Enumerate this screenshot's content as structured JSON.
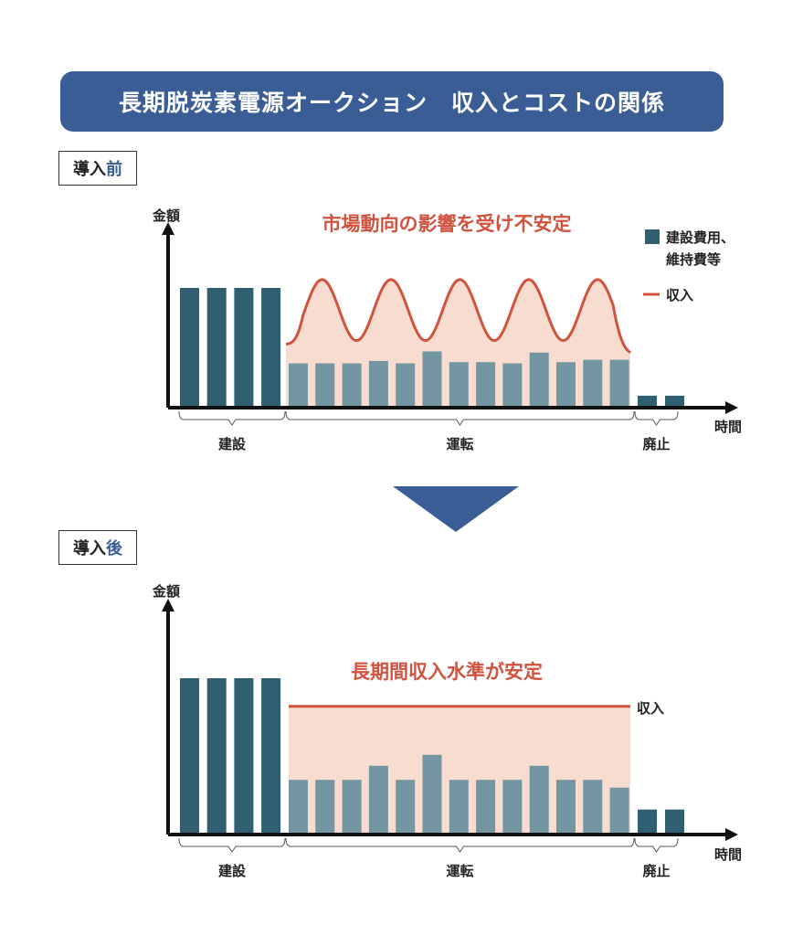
{
  "title": "長期脱炭素電源オークション　収入とコストの関係",
  "colors": {
    "banner": "#3a5d95",
    "cost_bar": "#2f5f70",
    "operation_bar": "#7495a2",
    "revenue": "#d0533f",
    "revenue_fill": "#f7dccf",
    "arrow": "#3a5d95"
  },
  "before": {
    "tag_prefix": "導入",
    "tag_accent": "前",
    "y_axis_label": "金額",
    "x_axis_label": "時間",
    "headline": "市場動向の影響を受け不安定",
    "legend": {
      "cost_label_line1": "建設費用、",
      "cost_label_line2": "維持費等",
      "revenue_label": "収入"
    },
    "phases": [
      "建設",
      "運転",
      "廃止"
    ],
    "construction_bars": [
      100,
      100,
      100,
      100
    ],
    "operation_bars": [
      37,
      37,
      37,
      39,
      37,
      47,
      38,
      38,
      37,
      46,
      38,
      40,
      40
    ],
    "decommission_bars": [
      10,
      10
    ],
    "revenue_pattern": "fluctuating",
    "revenue_range": {
      "start": 53,
      "peak": 107,
      "trough": 56,
      "end": 46,
      "peaks": 5
    }
  },
  "after": {
    "tag_prefix": "導入",
    "tag_accent": "後",
    "y_axis_label": "金額",
    "x_axis_label": "時間",
    "headline": "長期間収入水準が安定",
    "revenue_label": "収入",
    "phases": [
      "建設",
      "運転",
      "廃止"
    ],
    "construction_bars": [
      100,
      100,
      100,
      100
    ],
    "operation_bars": [
      35,
      35,
      35,
      44,
      35,
      51,
      35,
      35,
      35,
      44,
      35,
      35,
      30
    ],
    "decommission_bars": [
      16,
      16
    ],
    "revenue_pattern": "flat",
    "revenue_level": 82
  }
}
